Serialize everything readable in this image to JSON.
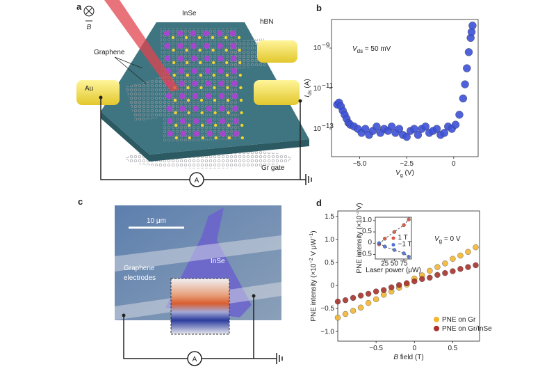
{
  "panels": {
    "a": {
      "label": "a",
      "field_symbol": "B",
      "insulator": "hBN",
      "crystal": "InSe",
      "electrode": "Graphene",
      "contact": "Au",
      "meter": "A",
      "gate": "Gr gate"
    },
    "c": {
      "label": "c",
      "scale_bar": "10 μm",
      "crystal": "InSe",
      "electrode": [
        "Graphene",
        "electrodes"
      ],
      "meter": "A"
    }
  },
  "chart_data": [
    {
      "type": "scatter",
      "label": "b",
      "log_y": true,
      "color": "#3d52d9",
      "x": [
        -6.2,
        -6.1,
        -6.0,
        -5.9,
        -5.8,
        -5.7,
        -5.6,
        -5.5,
        -5.3,
        -5.1,
        -4.9,
        -4.7,
        -4.5,
        -4.3,
        -4.1,
        -3.9,
        -3.7,
        -3.5,
        -3.3,
        -3.1,
        -2.9,
        -2.7,
        -2.5,
        -2.3,
        -2.1,
        -1.9,
        -1.7,
        -1.5,
        -1.3,
        -1.1,
        -0.9,
        -0.7,
        -0.5,
        -0.3,
        -0.1,
        0.1,
        0.3,
        0.5,
        0.6,
        0.7,
        0.8,
        0.9,
        0.95,
        1.0
      ],
      "values": [
        1.6e-12,
        2e-12,
        1.3e-12,
        7.9e-13,
        5e-13,
        3.2e-13,
        2e-13,
        1.6e-13,
        1.3e-13,
        1e-13,
        6.3e-14,
        1e-13,
        5e-14,
        7.9e-14,
        1.3e-13,
        6.3e-14,
        1e-13,
        7.9e-14,
        1.3e-13,
        6.3e-14,
        1e-13,
        5e-14,
        4e-14,
        7.9e-14,
        1e-13,
        5e-14,
        1e-13,
        1.3e-13,
        6.3e-14,
        7.9e-14,
        1e-13,
        5e-14,
        6.3e-14,
        1.3e-13,
        1e-13,
        1.6e-13,
        5e-13,
        3.2e-12,
        1.6e-11,
        1e-10,
        6.3e-10,
        3.2e-09,
        6.3e-09,
        1.3e-08
      ],
      "xlim": [
        -6.5,
        1.3
      ],
      "ylim": [
        4.2e-15,
        2.6e-08
      ],
      "xticks": [
        {
          "value": -5,
          "label": "−5.0"
        },
        {
          "value": -2.5,
          "label": "−2.5"
        },
        0
      ],
      "yticks": [
        {
          "value": 1e-13,
          "label": "10",
          "label_sup": "−13"
        },
        {
          "value": 1e-11,
          "label": "10",
          "label_sup": "−11"
        },
        {
          "value": 1e-09,
          "label": "10",
          "label_sup": "−9"
        }
      ],
      "x_label": [
        {
          "text": "V",
          "italic": true
        },
        {
          "text": "g",
          "sub": true
        },
        {
          "text": " (V)"
        }
      ],
      "y_label": [
        {
          "text": "I",
          "italic": true
        },
        {
          "text": "ds",
          "sub": true
        },
        {
          "text": " (A)"
        }
      ],
      "annotation": [
        {
          "text": "V",
          "italic": true
        },
        {
          "text": "ds",
          "sub": true
        },
        {
          "text": " = 50 mV"
        }
      ]
    },
    {
      "type": "scatter",
      "label": "d",
      "legend": "lower right",
      "x": [
        -1.0,
        -0.9,
        -0.8,
        -0.7,
        -0.6,
        -0.5,
        -0.4,
        -0.3,
        -0.2,
        -0.1,
        0.0,
        0.1,
        0.2,
        0.3,
        0.4,
        0.5,
        0.6,
        0.7,
        0.8
      ],
      "series": [
        {
          "name": "PNE on Gr",
          "color": "#f2b632",
          "values": [
            -0.7,
            -0.62,
            -0.55,
            -0.48,
            -0.38,
            -0.3,
            -0.2,
            -0.13,
            -0.05,
            0.02,
            0.15,
            0.22,
            0.32,
            0.4,
            0.48,
            0.58,
            0.65,
            0.73,
            0.83
          ]
        },
        {
          "name": "PNE on Gr/InSe",
          "color": "#a8322c",
          "values": [
            -0.35,
            -0.32,
            -0.27,
            -0.22,
            -0.18,
            -0.13,
            -0.1,
            -0.04,
            0.01,
            0.05,
            0.09,
            0.14,
            0.17,
            0.23,
            0.27,
            0.31,
            0.36,
            0.4,
            0.44
          ]
        }
      ],
      "xlim": [
        -1.0,
        0.85
      ],
      "ylim": [
        -1.21,
        1.62
      ],
      "xticks": [
        {
          "value": -0.5,
          "label": "−0.5"
        },
        0,
        0.5
      ],
      "yticks": [
        {
          "value": -1,
          "label": "−1.0"
        },
        {
          "value": -0.5,
          "label": "−0.5"
        },
        0,
        0.5,
        {
          "value": 1,
          "label": "1.0"
        },
        1.5
      ],
      "x_label": [
        {
          "text": "B",
          "italic": true
        },
        {
          "text": " field (T)"
        }
      ],
      "y_label": [
        {
          "text": "PNE intensity (×10"
        },
        {
          "text": "−2",
          "sup": true
        },
        {
          "text": " V μW"
        },
        {
          "text": "−1",
          "sup": true
        },
        {
          "text": ")"
        }
      ],
      "annotation": [
        {
          "text": "V",
          "italic": true
        },
        {
          "text": "g",
          "sub": true
        },
        {
          "text": " = 0 V"
        }
      ]
    },
    {
      "type": "line",
      "legend": "center right",
      "dashed": true,
      "x": [
        10,
        25,
        50,
        75,
        88
      ],
      "series": [
        {
          "name": "1 T",
          "color": "#d9553f",
          "values": [
            -0.05,
            0.2,
            0.5,
            0.8,
            1.05
          ]
        },
        {
          "name": "−1 T",
          "color": "#4a6fd6",
          "values": [
            0.0,
            -0.15,
            -0.3,
            -0.45,
            -0.6
          ]
        }
      ],
      "xlim": [
        0,
        95
      ],
      "ylim": [
        -0.7,
        1.15
      ],
      "xticks": [
        25,
        50,
        75
      ],
      "yticks": [
        {
          "value": -0.5,
          "label": "−0.5"
        },
        0,
        0.5,
        {
          "value": 1,
          "label": "1.0"
        }
      ],
      "x_label": [
        {
          "text": "Laser power (μW)"
        }
      ],
      "y_label": [
        {
          "text": "PNE intensity (×10"
        },
        {
          "text": "−2",
          "sup": true
        },
        {
          "text": " V)"
        }
      ]
    }
  ]
}
